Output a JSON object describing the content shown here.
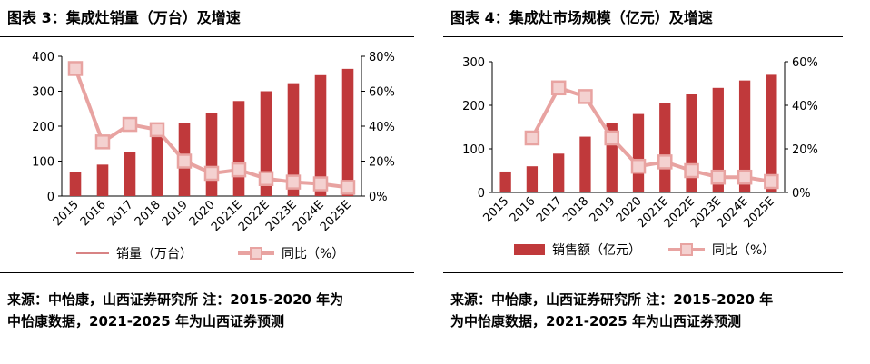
{
  "colors": {
    "bar": "#C0393B",
    "line": "#E8A3A1",
    "marker_fill": "#F4D1D0",
    "axis": "#000000"
  },
  "charts": [
    {
      "title": "图表 3：集成灶销量（万台）及增速",
      "source_line1": "来源：中怡康，山西证券研究所 注：2015-2020 年为",
      "source_line2": "中怡康数据，2021-2025 年为山西证券预测",
      "legend_bar": "销量（万台）",
      "legend_line": "同比（%）",
      "legend_bar_style": "line",
      "left_ticks": [
        "400",
        "300",
        "200",
        "100",
        "0"
      ],
      "right_ticks": [
        "80%",
        "60%",
        "40%",
        "20%",
        "0%"
      ]
    },
    {
      "title": "图表 4：集成灶市场规模（亿元）及增速",
      "source_line1": "来源：中怡康，山西证券研究所 注：2015-2020 年",
      "source_line2": "为中怡康数据，2021-2025 年为山西证券预测",
      "legend_bar": "销售额（亿元）",
      "legend_line": "同比（%）",
      "legend_bar_style": "box",
      "left_ticks": [
        "300",
        "200",
        "100",
        "0"
      ],
      "right_ticks": [
        "60%",
        "40%",
        "20%",
        "0%"
      ]
    }
  ],
  "chart_data": [
    {
      "type": "bar",
      "title": "图表 3：集成灶销量（万台）及增速",
      "categories": [
        "2015",
        "2016",
        "2017",
        "2018",
        "2019",
        "2020",
        "2021E",
        "2022E",
        "2023E",
        "2024E",
        "2025E"
      ],
      "series": [
        {
          "name": "销量（万台）",
          "type": "bar",
          "axis": "left",
          "values": [
            68,
            90,
            125,
            172,
            210,
            238,
            272,
            300,
            323,
            346,
            364
          ]
        },
        {
          "name": "同比（%）",
          "type": "line",
          "axis": "right",
          "values": [
            73,
            31,
            41,
            38,
            20,
            13,
            15,
            10,
            8,
            7,
            5
          ]
        }
      ],
      "ylim_left": [
        0,
        400
      ],
      "ylim_right": [
        0,
        80
      ],
      "y_right_unit": "%",
      "legend_position": "bottom"
    },
    {
      "type": "bar",
      "title": "图表 4：集成灶市场规模（亿元）及增速",
      "categories": [
        "2015",
        "2016",
        "2017",
        "2018",
        "2019",
        "2020",
        "2021E",
        "2022E",
        "2023E",
        "2024E",
        "2025E"
      ],
      "series": [
        {
          "name": "销售额（亿元）",
          "type": "bar",
          "axis": "left",
          "values": [
            48,
            60,
            89,
            128,
            160,
            180,
            205,
            225,
            240,
            257,
            270
          ]
        },
        {
          "name": "同比（%）",
          "type": "line",
          "axis": "right",
          "values": [
            null,
            25,
            48,
            44,
            25,
            12,
            14,
            10,
            7,
            7,
            5
          ]
        }
      ],
      "ylim_left": [
        0,
        300
      ],
      "ylim_right": [
        0,
        60
      ],
      "y_right_unit": "%",
      "legend_position": "bottom"
    }
  ]
}
